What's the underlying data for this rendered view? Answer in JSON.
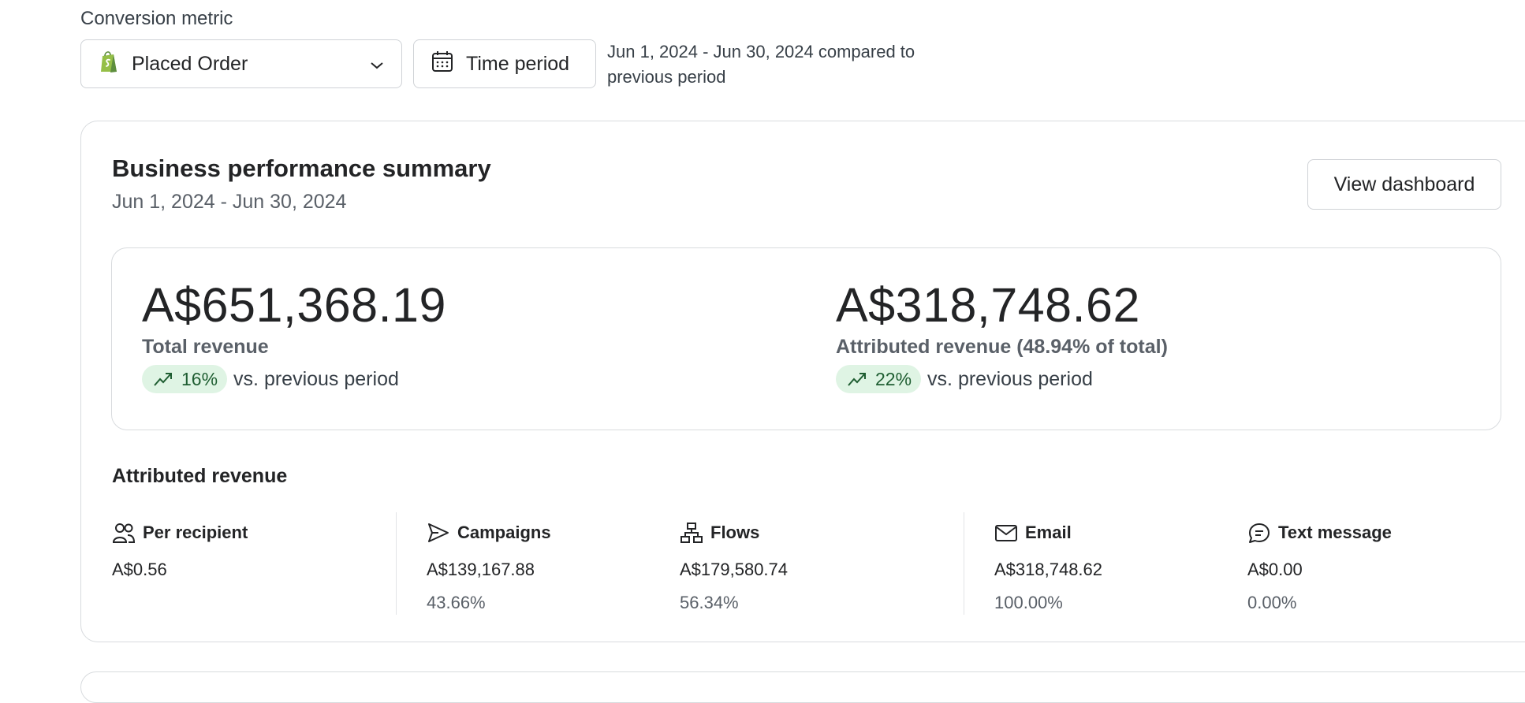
{
  "filters": {
    "metric_label": "Conversion metric",
    "metric_value": "Placed Order",
    "time_button_label": "Time period",
    "period_note": "Jun 1, 2024 - Jun 30, 2024 compared to previous period"
  },
  "summary": {
    "title": "Business performance summary",
    "date_range": "Jun 1, 2024 - Jun 30, 2024",
    "view_dashboard_label": "View dashboard",
    "total": {
      "value": "A$651,368.19",
      "label": "Total revenue",
      "change": "16%",
      "comparison": "vs. previous period"
    },
    "attributed": {
      "value": "A$318,748.62",
      "label": "Attributed revenue (48.94% of total)",
      "change": "22%",
      "comparison": "vs. previous period"
    }
  },
  "breakdown": {
    "title": "Attributed revenue",
    "per_recipient": {
      "label": "Per recipient",
      "value": "A$0.56",
      "icon": "users-icon"
    },
    "campaigns": {
      "label": "Campaigns",
      "value": "A$139,167.88",
      "percent": "43.66%",
      "icon": "send-icon"
    },
    "flows": {
      "label": "Flows",
      "value": "A$179,580.74",
      "percent": "56.34%",
      "icon": "flow-icon"
    },
    "email": {
      "label": "Email",
      "value": "A$318,748.62",
      "percent": "100.00%",
      "icon": "mail-icon"
    },
    "sms": {
      "label": "Text message",
      "value": "A$0.00",
      "percent": "0.00%",
      "icon": "message-icon"
    }
  },
  "colors": {
    "positive_bg": "#dff4e4",
    "positive_fg": "#1f5e32",
    "shopify_green": "#95bf47"
  }
}
